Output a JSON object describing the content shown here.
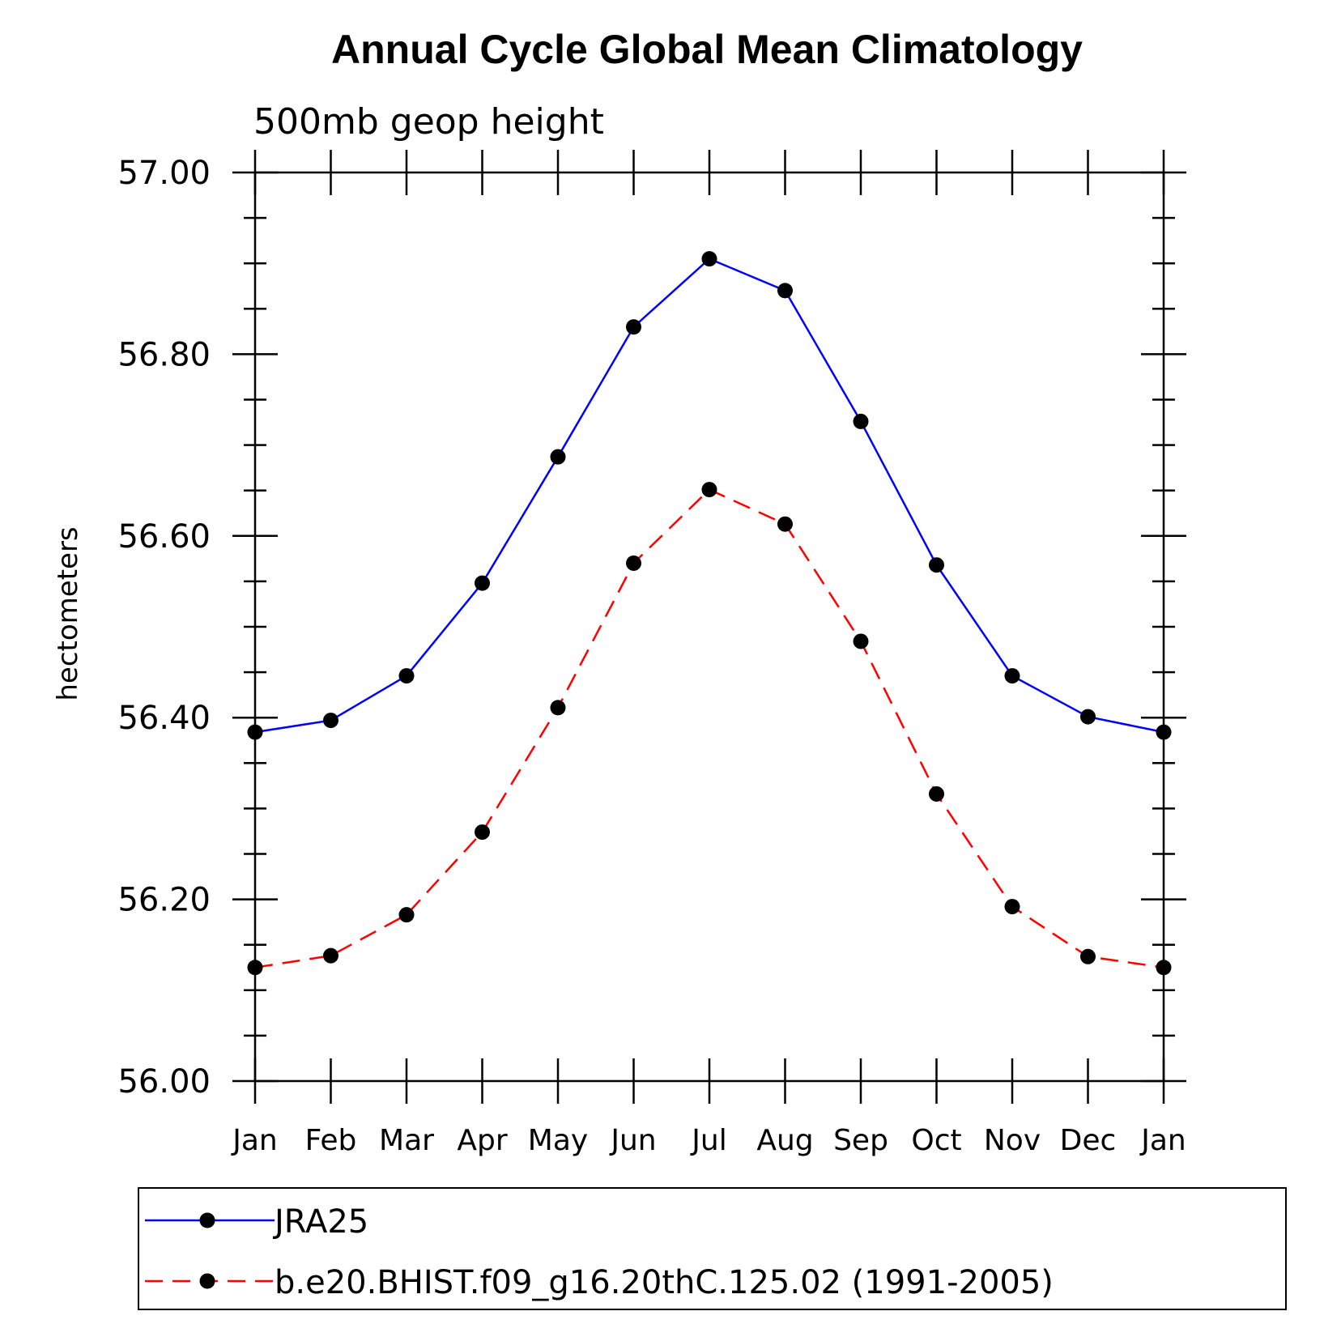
{
  "chart_data": {
    "type": "line",
    "title": "Annual Cycle Global Mean Climatology",
    "subtitle": "500mb geop height",
    "xlabel": "",
    "ylabel": "hectometers",
    "categories": [
      "Jan",
      "Feb",
      "Mar",
      "Apr",
      "May",
      "Jun",
      "Jul",
      "Aug",
      "Sep",
      "Oct",
      "Nov",
      "Dec",
      "Jan"
    ],
    "ylim": [
      56.0,
      57.0
    ],
    "yticks": [
      "56.00",
      "56.20",
      "56.40",
      "56.60",
      "56.80",
      "57.00"
    ],
    "grid": false,
    "legend_position": "bottom",
    "series": [
      {
        "name": "JRA25",
        "color": "#0000ff",
        "line_style": "solid",
        "marker": "filled-circle",
        "values": [
          56.384,
          56.397,
          56.446,
          56.548,
          56.687,
          56.83,
          56.905,
          56.87,
          56.726,
          56.568,
          56.446,
          56.401,
          56.384
        ]
      },
      {
        "name": "b.e20.BHIST.f09_g16.20thC.125.02 (1991-2005)",
        "color": "#ff0000",
        "line_style": "dashed",
        "marker": "filled-circle",
        "values": [
          56.125,
          56.138,
          56.183,
          56.274,
          56.411,
          56.57,
          56.651,
          56.613,
          56.484,
          56.316,
          56.192,
          56.137,
          56.125
        ]
      }
    ]
  }
}
